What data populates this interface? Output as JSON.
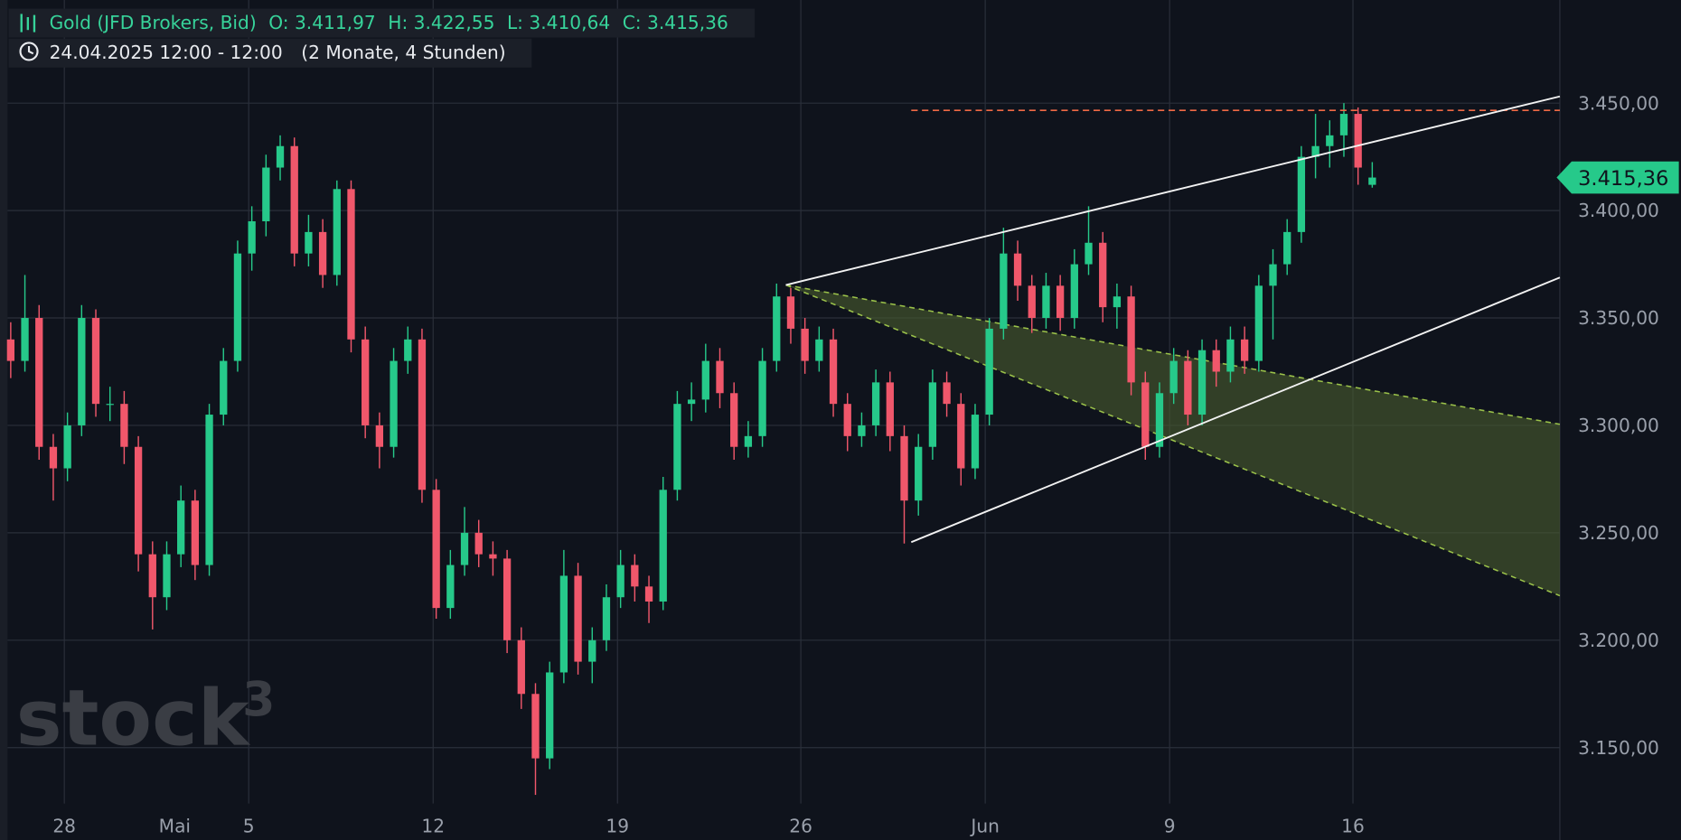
{
  "chart_data": {
    "type": "candlestick",
    "header": {
      "symbol": "Gold (JFD Brokers, Bid)",
      "o_label": "O:",
      "o": "3.411,97",
      "h_label": "H:",
      "h": "3.422,55",
      "l_label": "L:",
      "l": "3.410,64",
      "c_label": "C:",
      "c": "3.415,36",
      "date": "24.04.2025 12:00 - 12:00",
      "range": "(2 Monate, 4 Stunden)"
    },
    "watermark": "stock",
    "watermark_sup": "3",
    "up_color": "#26c98a",
    "down_color": "#f0576b",
    "open": [
      3340,
      3330,
      3350,
      3290,
      3280,
      3300,
      3350,
      3310,
      3310,
      3290,
      3240,
      3220,
      3240,
      3265,
      3235,
      3305,
      3330,
      3380,
      3395,
      3420,
      3430,
      3380,
      3390,
      3370,
      3410,
      3340,
      3300,
      3290,
      3330,
      3340,
      3270,
      3215,
      3235,
      3250,
      3240,
      3238,
      3200,
      3175,
      3145,
      3185,
      3230,
      3190,
      3200,
      3220,
      3235,
      3225,
      3218,
      3270,
      3310,
      3312,
      3330,
      3315,
      3290,
      3295,
      3330,
      3360,
      3345,
      3330,
      3340,
      3310,
      3295,
      3300,
      3320,
      3295,
      3265,
      3290,
      3320,
      3310,
      3280,
      3305,
      3345,
      3380,
      3365,
      3350,
      3365,
      3350,
      3375,
      3385,
      3355,
      3360,
      3320,
      3290,
      3315,
      3330,
      3305,
      3335,
      3325,
      3340,
      3330,
      3365,
      3375,
      3390,
      3425,
      3430,
      3435,
      3445,
      3411.97
    ],
    "high": [
      3348,
      3370,
      3356,
      3296,
      3306,
      3356,
      3354,
      3318,
      3316,
      3295,
      3246,
      3246,
      3272,
      3270,
      3310,
      3336,
      3386,
      3402,
      3426,
      3435,
      3434,
      3398,
      3396,
      3414,
      3414,
      3346,
      3306,
      3336,
      3346,
      3345,
      3275,
      3242,
      3262,
      3256,
      3246,
      3242,
      3206,
      3180,
      3190,
      3242,
      3236,
      3206,
      3226,
      3242,
      3240,
      3230,
      3276,
      3316,
      3320,
      3338,
      3336,
      3320,
      3302,
      3336,
      3366,
      3364,
      3350,
      3346,
      3345,
      3315,
      3306,
      3326,
      3325,
      3300,
      3296,
      3326,
      3325,
      3315,
      3310,
      3350,
      3392,
      3386,
      3370,
      3371,
      3370,
      3382,
      3402,
      3390,
      3366,
      3365,
      3325,
      3320,
      3336,
      3335,
      3340,
      3340,
      3346,
      3346,
      3370,
      3382,
      3396,
      3430,
      3445,
      3442,
      3450,
      3448,
      3422.55
    ],
    "low": [
      3322,
      3325,
      3284,
      3265,
      3274,
      3295,
      3304,
      3302,
      3282,
      3232,
      3205,
      3214,
      3234,
      3228,
      3230,
      3300,
      3325,
      3372,
      3388,
      3414,
      3374,
      3374,
      3364,
      3365,
      3334,
      3294,
      3280,
      3285,
      3324,
      3264,
      3210,
      3210,
      3230,
      3234,
      3230,
      3194,
      3168,
      3128,
      3140,
      3180,
      3184,
      3180,
      3195,
      3215,
      3218,
      3208,
      3214,
      3265,
      3302,
      3306,
      3308,
      3284,
      3285,
      3290,
      3325,
      3338,
      3324,
      3325,
      3304,
      3288,
      3290,
      3295,
      3288,
      3245,
      3258,
      3284,
      3304,
      3272,
      3275,
      3300,
      3340,
      3358,
      3343,
      3345,
      3344,
      3345,
      3370,
      3348,
      3345,
      3314,
      3284,
      3285,
      3310,
      3300,
      3300,
      3318,
      3320,
      3324,
      3325,
      3340,
      3370,
      3385,
      3415,
      3420,
      3425,
      3412,
      3410.64
    ],
    "close": [
      3330,
      3350,
      3290,
      3280,
      3300,
      3350,
      3310,
      3310,
      3290,
      3240,
      3220,
      3240,
      3265,
      3235,
      3305,
      3330,
      3380,
      3395,
      3420,
      3430,
      3380,
      3390,
      3370,
      3410,
      3340,
      3300,
      3290,
      3330,
      3340,
      3270,
      3215,
      3235,
      3250,
      3240,
      3238,
      3200,
      3175,
      3145,
      3185,
      3230,
      3190,
      3200,
      3220,
      3235,
      3225,
      3218,
      3270,
      3310,
      3312,
      3330,
      3315,
      3290,
      3295,
      3330,
      3360,
      3345,
      3330,
      3340,
      3310,
      3295,
      3300,
      3320,
      3295,
      3265,
      3290,
      3320,
      3310,
      3280,
      3305,
      3345,
      3380,
      3365,
      3350,
      3365,
      3350,
      3375,
      3385,
      3355,
      3360,
      3320,
      3290,
      3315,
      3330,
      3305,
      3335,
      3325,
      3340,
      3330,
      3365,
      3375,
      3390,
      3425,
      3430,
      3435,
      3445,
      3420,
      3415.36
    ],
    "last_price": {
      "value": 3415.36,
      "label": "3.415,36"
    },
    "xticks": [
      "28",
      "Mai",
      "5",
      "12",
      "19",
      "26",
      "Jun",
      "9",
      "16"
    ],
    "ylim": [
      3107,
      3498
    ],
    "yticks": [
      {
        "value": 3450,
        "label": "3.450,00"
      },
      {
        "value": 3400,
        "label": "3.400,00"
      },
      {
        "value": 3350,
        "label": "3.350,00"
      },
      {
        "value": 3300,
        "label": "3.300,00"
      },
      {
        "value": 3250,
        "label": "3.250,00"
      },
      {
        "value": 3200,
        "label": "3.200,00"
      },
      {
        "value": 3150,
        "label": "3.150,00"
      }
    ],
    "grid": true
  }
}
